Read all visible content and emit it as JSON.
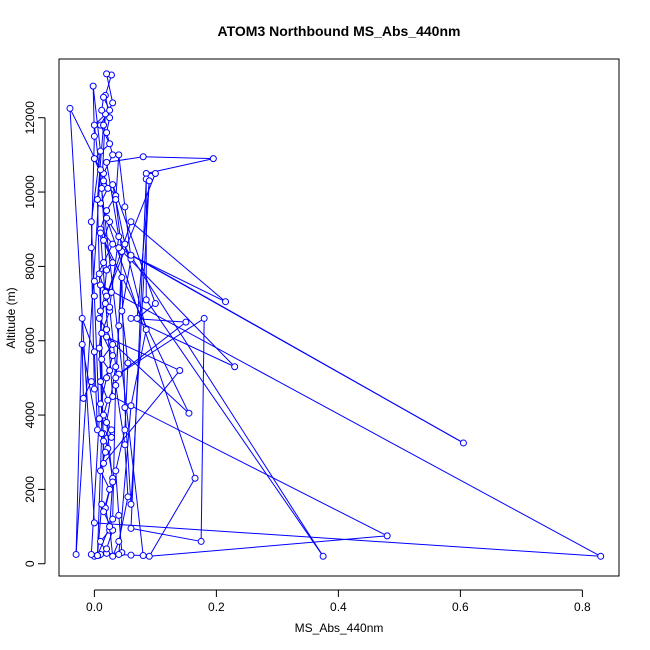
{
  "chart_data": {
    "type": "line",
    "title": "ATOM3 Northbound MS_Abs_440nm",
    "xlabel": "MS_Abs_440nm",
    "ylabel": "Altitude (m)",
    "xlim": [
      -0.058,
      0.86
    ],
    "ylim": [
      -330,
      13580
    ],
    "x_ticks": [
      0.0,
      0.2,
      0.4,
      0.6,
      0.8
    ],
    "x_tick_labels": [
      "0.0",
      "0.2",
      "0.4",
      "0.6",
      "0.8"
    ],
    "y_ticks": [
      0,
      2000,
      4000,
      6000,
      8000,
      10000,
      12000
    ],
    "y_tick_labels": [
      "0",
      "2000",
      "4000",
      "6000",
      "8000",
      "10000",
      "12000"
    ],
    "grid": false,
    "legend": "none",
    "series_color": "#0000ff",
    "marker": "open-circle",
    "series": [
      {
        "points": [
          [
            0.0,
            200
          ],
          [
            0.008,
            230
          ],
          [
            0.02,
            280
          ],
          [
            0.01,
            600
          ],
          [
            0.025,
            900
          ],
          [
            0.018,
            1500
          ],
          [
            0.03,
            2300
          ],
          [
            0.022,
            3100
          ],
          [
            0.015,
            3500
          ],
          [
            0.028,
            3400
          ],
          [
            0.01,
            4300
          ],
          [
            0.02,
            5000
          ],
          [
            0.03,
            5600
          ],
          [
            0.012,
            6200
          ],
          [
            0.025,
            6800
          ],
          [
            0.018,
            7300
          ],
          [
            0.008,
            7800
          ],
          [
            0.03,
            8100
          ],
          [
            0.015,
            8700
          ],
          [
            0.025,
            9200
          ],
          [
            0.01,
            9700
          ],
          [
            0.022,
            10100
          ],
          [
            0.015,
            10500
          ],
          [
            0.03,
            11000
          ],
          [
            0.02,
            11600
          ],
          [
            0.025,
            12000
          ],
          [
            0.018,
            12600
          ],
          [
            0.028,
            13150
          ],
          [
            0.02,
            13180
          ],
          [
            0.03,
            12400
          ],
          [
            0.01,
            11800
          ],
          [
            0.025,
            11300
          ],
          [
            0.0,
            10900
          ],
          [
            0.015,
            10300
          ],
          [
            0.035,
            9900
          ],
          [
            0.02,
            9500
          ],
          [
            0.01,
            9000
          ],
          [
            0.03,
            8600
          ],
          [
            0.015,
            8100
          ],
          [
            0.0,
            7600
          ],
          [
            0.028,
            7300
          ],
          [
            0.018,
            7000
          ],
          [
            0.008,
            6600
          ],
          [
            0.02,
            6300
          ],
          [
            0.03,
            5900
          ],
          [
            0.012,
            5500
          ],
          [
            0.025,
            5200
          ],
          [
            0.01,
            4900
          ],
          [
            0.022,
            4400
          ],
          [
            0.015,
            4000
          ],
          [
            0.028,
            3600
          ],
          [
            0.018,
            3000
          ],
          [
            0.01,
            2500
          ],
          [
            0.025,
            2000
          ],
          [
            0.015,
            1400
          ],
          [
            0.03,
            900
          ],
          [
            0.02,
            400
          ],
          [
            0.01,
            250
          ],
          [
            0.045,
            300
          ],
          [
            0.04,
            1300
          ],
          [
            0.035,
            2500
          ],
          [
            0.05,
            3600
          ],
          [
            0.055,
            5400
          ],
          [
            0.045,
            6800
          ],
          [
            0.06,
            8200
          ],
          [
            0.05,
            9600
          ],
          [
            0.04,
            11000
          ],
          [
            0.035,
            9800
          ],
          [
            0.045,
            8400
          ],
          [
            0.04,
            6400
          ],
          [
            0.035,
            4800
          ],
          [
            0.05,
            3200
          ],
          [
            0.055,
            1800
          ],
          [
            0.04,
            600
          ],
          [
            0.03,
            200
          ],
          [
            0.025,
            1000
          ],
          [
            0.03,
            2200
          ],
          [
            0.02,
            3800
          ],
          [
            0.035,
            5300
          ],
          [
            0.025,
            6900
          ],
          [
            0.04,
            8800
          ],
          [
            0.02,
            10800
          ],
          [
            0.08,
            10950
          ],
          [
            0.195,
            10900
          ],
          [
            0.085,
            10500
          ],
          [
            0.1,
            10500
          ],
          [
            0.02,
            7200
          ],
          [
            0.06,
            9200
          ],
          [
            0.215,
            7050
          ],
          [
            0.06,
            8300
          ],
          [
            0.605,
            3250
          ],
          [
            0.04,
            8500
          ],
          [
            0.23,
            5300
          ],
          [
            0.06,
            6600
          ],
          [
            0.15,
            6500
          ],
          [
            0.04,
            5100
          ],
          [
            0.18,
            6600
          ],
          [
            0.175,
            600
          ],
          [
            0.06,
            950
          ],
          [
            0.085,
            10350
          ],
          [
            0.085,
            7100
          ],
          [
            0.375,
            200
          ],
          [
            0.02,
            9300
          ],
          [
            0.165,
            2300
          ],
          [
            0.09,
            200
          ],
          [
            0.48,
            750
          ],
          [
            0.03,
            4500
          ],
          [
            0.01,
            8900
          ],
          [
            0.155,
            4050
          ],
          [
            0.02,
            6100
          ],
          [
            0.14,
            5200
          ],
          [
            0.015,
            2700
          ],
          [
            0.01,
            7500
          ],
          [
            0.83,
            200
          ],
          [
            0.0,
            1100
          ],
          [
            -0.04,
            12250
          ],
          [
            0.01,
            10600
          ],
          [
            -0.03,
            250
          ],
          [
            -0.02,
            6600
          ],
          [
            0.0,
            5700
          ],
          [
            0.005,
            3600
          ],
          [
            -0.02,
            5900
          ],
          [
            -0.018,
            4450
          ],
          [
            -0.005,
            4900
          ],
          [
            0.0,
            4700
          ],
          [
            -0.005,
            8500
          ],
          [
            0.0,
            11500
          ],
          [
            -0.002,
            12850
          ],
          [
            0.01,
            11100
          ],
          [
            -0.005,
            9200
          ],
          [
            0.0,
            7200
          ],
          [
            0.008,
            3900
          ],
          [
            -0.005,
            250
          ],
          [
            0.005,
            220
          ],
          [
            0.012,
            3500
          ],
          [
            0.01,
            6800
          ],
          [
            0.005,
            9800
          ],
          [
            0.015,
            11800
          ],
          [
            0.018,
            12100
          ],
          [
            0.012,
            10100
          ],
          [
            0.02,
            7900
          ],
          [
            0.008,
            5800
          ],
          [
            0.015,
            3300
          ],
          [
            0.012,
            1600
          ],
          [
            0.005,
            220
          ],
          [
            0.03,
            1200
          ],
          [
            0.035,
            5000
          ],
          [
            0.045,
            7700
          ],
          [
            0.05,
            4200
          ],
          [
            0.06,
            1600
          ],
          [
            0.09,
            10300
          ],
          [
            0.07,
            6600
          ],
          [
            0.1,
            7000
          ],
          [
            0.03,
            10200
          ],
          [
            0.05,
            8600
          ],
          [
            0.085,
            6300
          ],
          [
            0.06,
            4250
          ],
          [
            0.04,
            250
          ],
          [
            0.06,
            230
          ],
          [
            0.08,
            220
          ],
          [
            0.0,
            11800
          ],
          [
            0.025,
            12200
          ],
          [
            0.015,
            12550
          ],
          [
            0.012,
            12200
          ]
        ]
      }
    ]
  }
}
